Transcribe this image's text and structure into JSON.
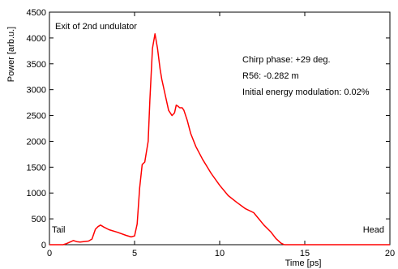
{
  "chart_data": {
    "type": "line",
    "title": "",
    "xlabel": "Time [ps]",
    "ylabel": "Power [arb.u.]",
    "xlim": [
      0,
      20
    ],
    "ylim": [
      0,
      4500
    ],
    "xticks": [
      0,
      5,
      10,
      15,
      20
    ],
    "yticks": [
      0,
      500,
      1000,
      1500,
      2000,
      2500,
      3000,
      3500,
      4000,
      4500
    ],
    "grid": false,
    "annotations": {
      "panel_label": "Exit of 2nd undulator",
      "chirp_phase": "Chirp phase: +29 deg.",
      "r56": "R56: -0.282 m",
      "energy_modulation": "Initial energy modulation: 0.02%",
      "tail_label": "Tail",
      "head_label": "Head"
    },
    "series": [
      {
        "color": "#ff0000",
        "x": [
          0,
          0.8,
          1.0,
          1.2,
          1.4,
          1.6,
          1.8,
          2.0,
          2.3,
          2.5,
          2.7,
          2.85,
          3.0,
          3.2,
          3.5,
          4.0,
          4.5,
          4.8,
          5.0,
          5.15,
          5.3,
          5.45,
          5.6,
          5.8,
          5.9,
          6.05,
          6.2,
          6.35,
          6.5,
          6.6,
          6.8,
          7.0,
          7.2,
          7.35,
          7.45,
          7.55,
          7.65,
          7.8,
          7.9,
          8.1,
          8.3,
          8.6,
          9.0,
          9.5,
          10.0,
          10.5,
          11.0,
          11.5,
          12.0,
          12.3,
          12.6,
          13.0,
          13.3,
          13.6,
          13.8,
          14.0,
          14.5,
          15.0,
          20.0
        ],
        "values": [
          0,
          0,
          20,
          50,
          80,
          60,
          50,
          60,
          70,
          110,
          300,
          350,
          380,
          340,
          290,
          240,
          180,
          150,
          170,
          400,
          1100,
          1550,
          1600,
          2000,
          2800,
          3800,
          4080,
          3800,
          3400,
          3200,
          2900,
          2600,
          2500,
          2550,
          2700,
          2680,
          2650,
          2650,
          2600,
          2400,
          2150,
          1900,
          1650,
          1380,
          1150,
          950,
          820,
          700,
          620,
          500,
          380,
          250,
          120,
          30,
          0,
          0,
          0,
          0,
          0
        ]
      }
    ]
  }
}
